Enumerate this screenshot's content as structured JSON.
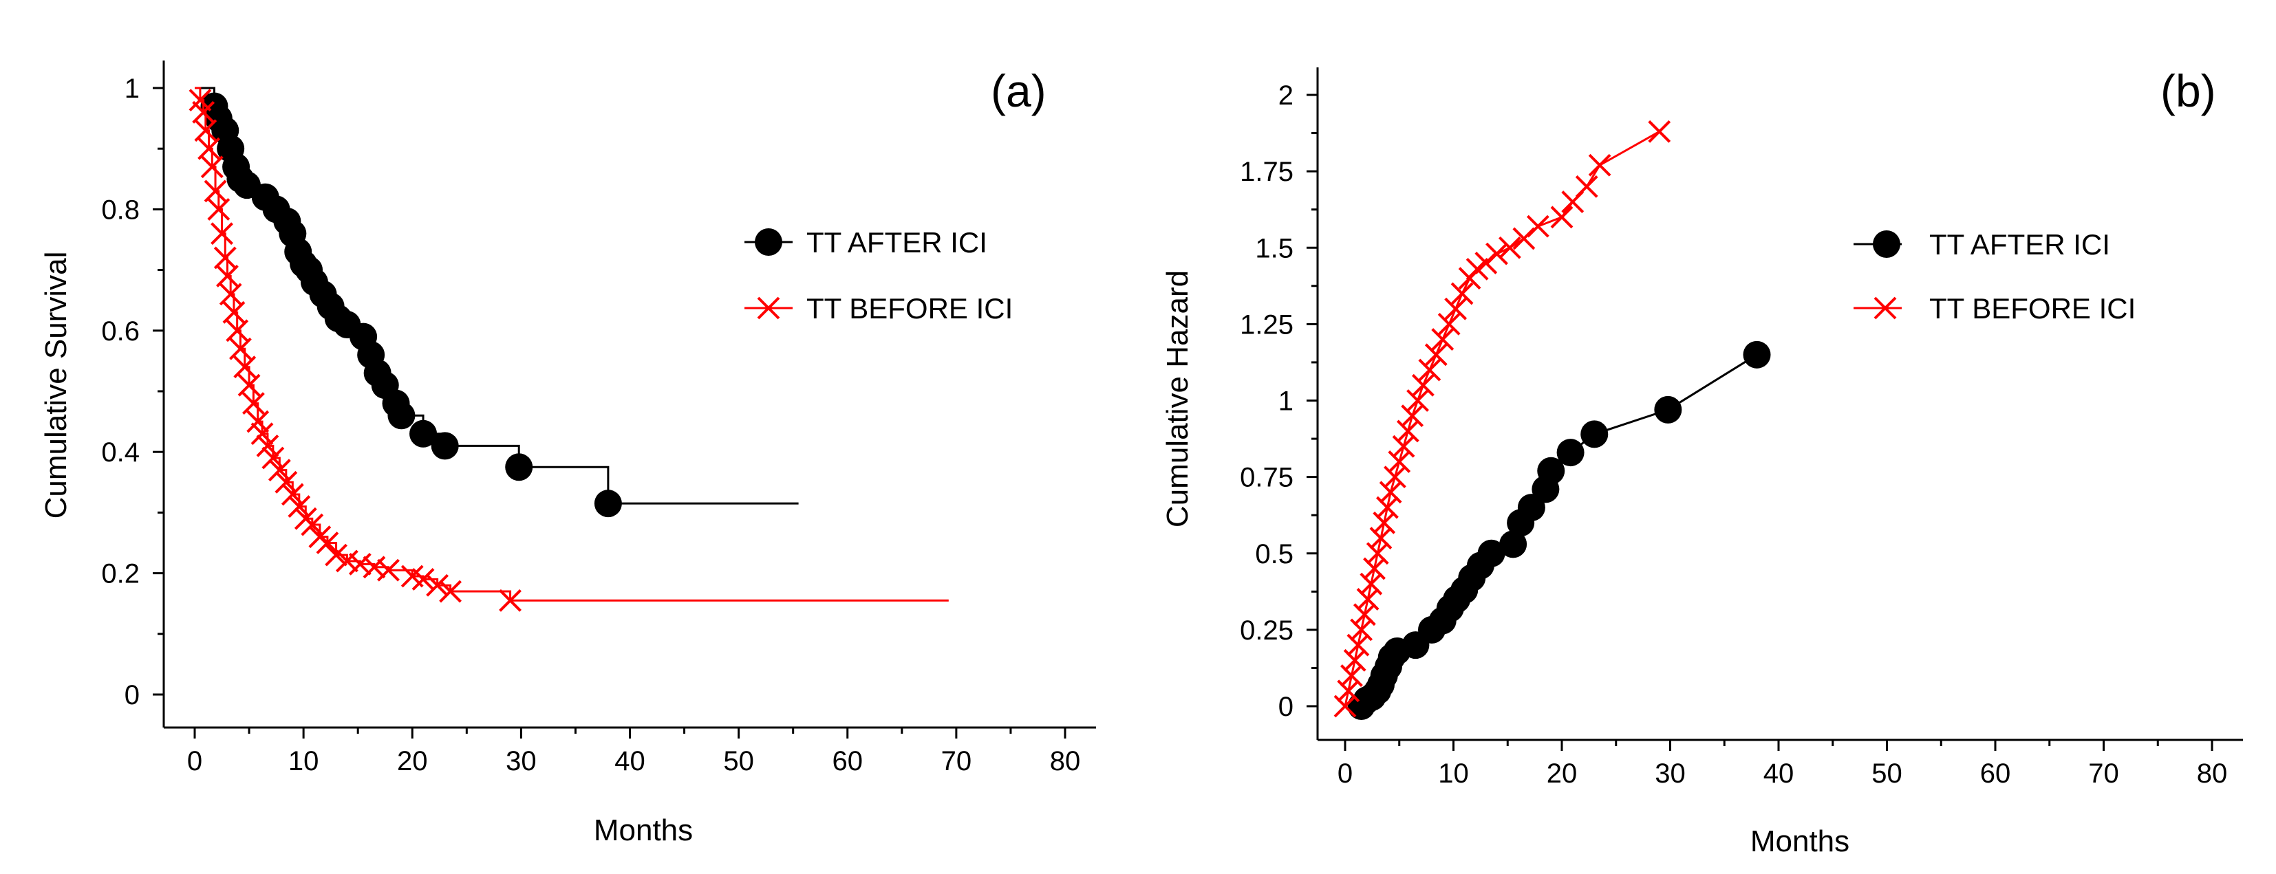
{
  "colors": {
    "after_ici": "#000000",
    "before_ici": "#ff0000",
    "axis": "#000000"
  },
  "chart_data": [
    {
      "type": "line",
      "panel_label": "(a)",
      "xlabel": "Months",
      "ylabel": "Cumulative Survival",
      "xlim": [
        0,
        80
      ],
      "ylim": [
        0,
        1
      ],
      "x_ticks": [
        0,
        10,
        20,
        30,
        40,
        50,
        60,
        70,
        80
      ],
      "y_ticks": [
        0,
        0.2,
        0.4,
        0.6,
        0.8,
        1
      ],
      "y_tick_labels": [
        "0",
        "0.2",
        "0.4",
        "0.6",
        "0.8",
        "1"
      ],
      "grid": false,
      "legend_position": "right",
      "series": [
        {
          "name": "TT AFTER ICI",
          "marker": "circle",
          "color": "#000000",
          "line_style": "step",
          "x": [
            0,
            1.8,
            2.2,
            2.8,
            3.3,
            3.8,
            4.2,
            4.8,
            6.5,
            7.5,
            8.5,
            9.0,
            9.5,
            10.0,
            10.5,
            11.0,
            11.8,
            12.5,
            13.2,
            14.0,
            15.5,
            16.2,
            16.8,
            17.5,
            18.5,
            19.0,
            21.0,
            23.0,
            29.8,
            38.0,
            55.5
          ],
          "y": [
            1,
            0.97,
            0.95,
            0.93,
            0.9,
            0.87,
            0.85,
            0.84,
            0.82,
            0.8,
            0.78,
            0.76,
            0.73,
            0.71,
            0.7,
            0.68,
            0.66,
            0.64,
            0.62,
            0.61,
            0.59,
            0.56,
            0.53,
            0.51,
            0.48,
            0.46,
            0.43,
            0.41,
            0.375,
            0.315,
            0.315
          ],
          "censored_end": 55.5
        },
        {
          "name": "TT BEFORE ICI",
          "marker": "x",
          "color": "#ff0000",
          "line_style": "step",
          "x": [
            0,
            0.5,
            0.8,
            1.0,
            1.3,
            1.6,
            1.9,
            2.2,
            2.5,
            2.8,
            3.0,
            3.3,
            3.6,
            3.9,
            4.2,
            4.6,
            5.0,
            5.4,
            5.8,
            6.2,
            6.7,
            7.2,
            7.8,
            8.4,
            9.0,
            9.6,
            10.2,
            10.8,
            11.5,
            12.2,
            13.0,
            14.0,
            15.2,
            16.5,
            17.8,
            20.0,
            21.0,
            22.3,
            23.5,
            29.0,
            69.3
          ],
          "y": [
            1,
            0.98,
            0.96,
            0.93,
            0.9,
            0.87,
            0.83,
            0.8,
            0.76,
            0.72,
            0.69,
            0.66,
            0.63,
            0.6,
            0.57,
            0.54,
            0.51,
            0.48,
            0.45,
            0.43,
            0.41,
            0.39,
            0.37,
            0.35,
            0.33,
            0.31,
            0.29,
            0.28,
            0.26,
            0.25,
            0.23,
            0.22,
            0.215,
            0.21,
            0.205,
            0.195,
            0.19,
            0.18,
            0.17,
            0.155,
            0.155
          ],
          "censored_end": 69.3
        }
      ]
    },
    {
      "type": "line",
      "panel_label": "(b)",
      "xlabel": "Months",
      "ylabel": "Cumulative Hazard",
      "xlim": [
        0,
        80
      ],
      "ylim": [
        0,
        2
      ],
      "x_ticks": [
        0,
        10,
        20,
        30,
        40,
        50,
        60,
        70,
        80
      ],
      "y_ticks": [
        0,
        0.25,
        0.5,
        0.75,
        1,
        1.25,
        1.5,
        1.75,
        2
      ],
      "y_tick_labels": [
        "0",
        "0.25",
        "0.5",
        "0.75",
        "1",
        "1.25",
        "1.5",
        "1.75",
        "2"
      ],
      "grid": false,
      "legend_position": "right",
      "series": [
        {
          "name": "TT AFTER ICI",
          "marker": "circle",
          "color": "#000000",
          "line_style": "line",
          "x": [
            1.5,
            2.0,
            2.5,
            3.0,
            3.3,
            3.6,
            4.0,
            4.3,
            4.8,
            6.5,
            8.0,
            9.0,
            9.7,
            10.3,
            11.0,
            11.7,
            12.5,
            13.5,
            15.5,
            16.2,
            17.2,
            18.5,
            19.0,
            20.8,
            23.0,
            29.8,
            38.0
          ],
          "y": [
            0,
            0.02,
            0.03,
            0.05,
            0.07,
            0.1,
            0.13,
            0.16,
            0.18,
            0.2,
            0.25,
            0.28,
            0.32,
            0.35,
            0.38,
            0.42,
            0.46,
            0.5,
            0.53,
            0.6,
            0.65,
            0.71,
            0.77,
            0.83,
            0.89,
            0.97,
            1.15
          ]
        },
        {
          "name": "TT BEFORE ICI",
          "marker": "x",
          "color": "#ff0000",
          "line_style": "line",
          "x": [
            0,
            0.3,
            0.6,
            0.9,
            1.2,
            1.5,
            1.8,
            2.1,
            2.4,
            2.7,
            3.0,
            3.3,
            3.6,
            3.9,
            4.2,
            4.6,
            5.0,
            5.4,
            5.8,
            6.2,
            6.7,
            7.2,
            7.8,
            8.4,
            9.0,
            9.6,
            10.2,
            10.8,
            11.5,
            12.2,
            13.0,
            14.0,
            15.2,
            16.5,
            17.8,
            20.0,
            21.0,
            22.3,
            23.5,
            29.0
          ],
          "y": [
            0,
            0.05,
            0.1,
            0.15,
            0.2,
            0.25,
            0.3,
            0.35,
            0.4,
            0.45,
            0.5,
            0.55,
            0.6,
            0.65,
            0.7,
            0.75,
            0.8,
            0.85,
            0.9,
            0.95,
            1.0,
            1.05,
            1.1,
            1.15,
            1.2,
            1.25,
            1.3,
            1.35,
            1.4,
            1.43,
            1.45,
            1.48,
            1.5,
            1.53,
            1.57,
            1.6,
            1.65,
            1.7,
            1.77,
            1.88
          ]
        }
      ]
    }
  ]
}
